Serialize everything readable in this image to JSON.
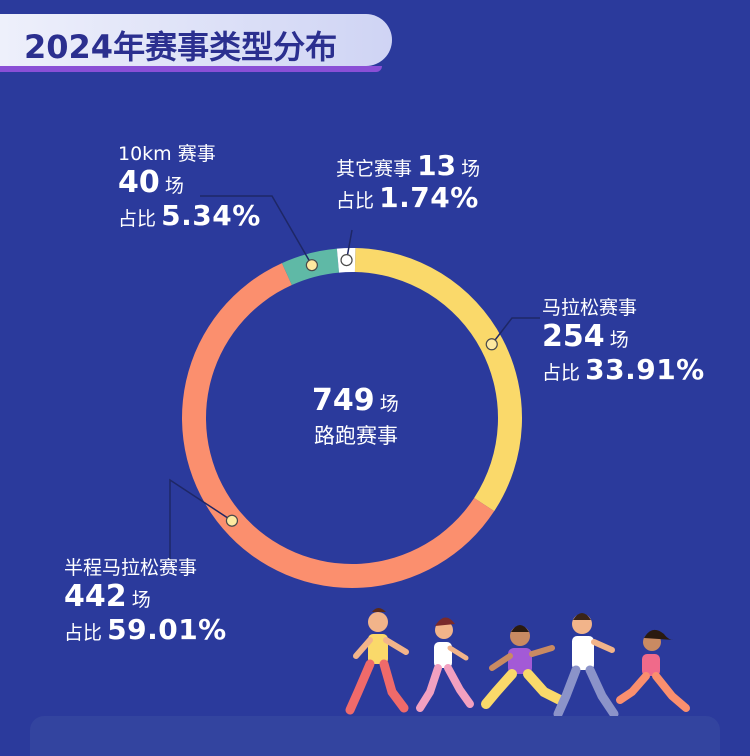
{
  "title": "2024年赛事类型分布",
  "center": {
    "count": "749",
    "unit": "场",
    "label": "路跑赛事"
  },
  "chart_data": {
    "type": "pie",
    "title": "2024年赛事类型分布",
    "total": 749,
    "categories": [
      "马拉松赛事",
      "半程马拉松赛事",
      "10km 赛事",
      "其它赛事"
    ],
    "values": [
      254,
      442,
      40,
      13
    ],
    "percent": [
      33.91,
      59.01,
      5.34,
      1.74
    ],
    "colors": [
      "#fad96a",
      "#fb8f6e",
      "#5fb9a6",
      "#ffffff"
    ]
  },
  "labels": {
    "marathon": {
      "name": "马拉松赛事",
      "count": "254",
      "unit": "场",
      "pct_prefix": "占比",
      "pct": "33.91%"
    },
    "half": {
      "name": "半程马拉松赛事",
      "count": "442",
      "unit": "场",
      "pct_prefix": "占比",
      "pct": "59.01%"
    },
    "tenk": {
      "name": "10km 赛事",
      "count": "40",
      "unit": "场",
      "pct_prefix": "占比",
      "pct": "5.34%"
    },
    "other": {
      "name": "其它赛事",
      "count": "13",
      "unit": "场",
      "pct_prefix": "占比",
      "pct": "1.74%"
    }
  }
}
